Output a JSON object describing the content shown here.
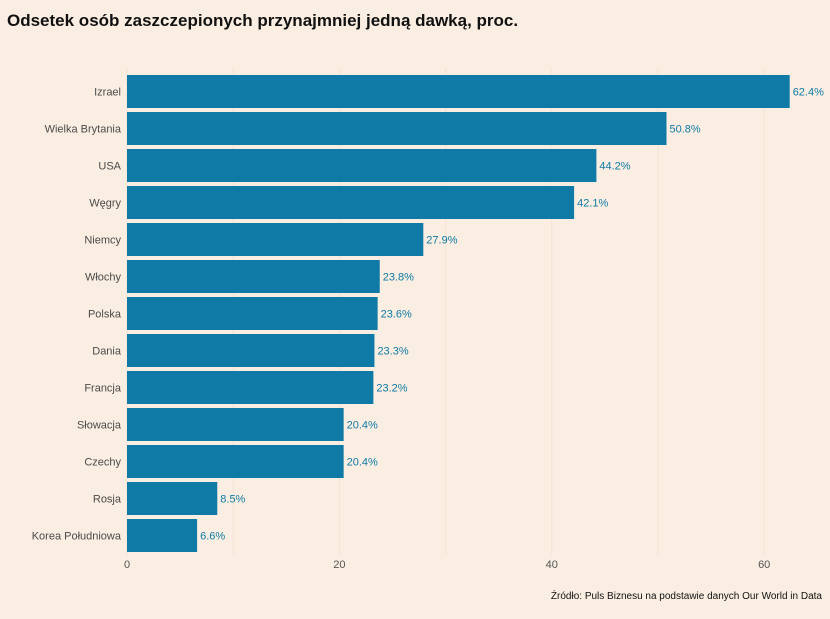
{
  "chart_data": {
    "type": "bar",
    "orientation": "horizontal",
    "title": "Odsetek osób zaszczepionych przynajmniej jedną dawką, proc.",
    "source": "Źródło: Puls Biznesu na podstawie danych Our World in Data",
    "categories": [
      "Izrael",
      "Wielka Brytania",
      "USA",
      "Węgry",
      "Niemcy",
      "Włochy",
      "Polska",
      "Dania",
      "Francja",
      "Słowacja",
      "Czechy",
      "Rosja",
      "Korea Południowa"
    ],
    "values": [
      62.4,
      50.8,
      44.2,
      42.1,
      27.9,
      23.8,
      23.6,
      23.3,
      23.2,
      20.4,
      20.4,
      8.5,
      6.6
    ],
    "value_labels": [
      "62.4%",
      "50.8%",
      "44.2%",
      "42.1%",
      "27.9%",
      "23.8%",
      "23.6%",
      "23.3%",
      "23.2%",
      "20.4%",
      "20.4%",
      "8.5%",
      "6.6%"
    ],
    "xticks": [
      0,
      20,
      40,
      60
    ],
    "xtick_labels": [
      "0",
      "20",
      "40",
      "60"
    ],
    "xlim": [
      0,
      62.4
    ],
    "xlabel": "",
    "ylabel": "",
    "grid": true,
    "bar_color": "#0e7aa5",
    "label_color": "#0e7aa5",
    "background_color": "#faeee2"
  }
}
